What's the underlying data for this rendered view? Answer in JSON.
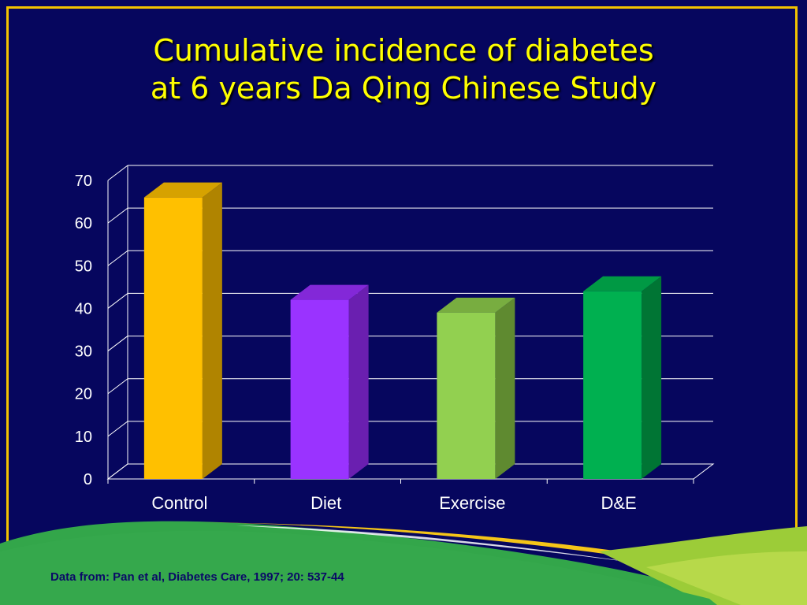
{
  "slide": {
    "title_line1": "Cumulative incidence of diabetes",
    "title_line2": "at 6 years Da Qing Chinese Study",
    "footnote": "Data from: Pan et al, Diabetes Care, 1997; 20: 537-44"
  },
  "colors": {
    "background": "#06065e",
    "frame": "#f2c200",
    "title": "#ffff00",
    "axis_text": "#ffffff",
    "grid": "#ffffff"
  },
  "chart_data": {
    "type": "bar",
    "title": "",
    "xlabel": "",
    "ylabel": "",
    "categories": [
      "Control",
      "Diet",
      "Exercise",
      "D&E"
    ],
    "values": [
      66,
      42,
      39,
      44
    ],
    "bar_colors": [
      {
        "front": "#ffc000",
        "side": "#b08400",
        "top": "#d6a200"
      },
      {
        "front": "#9a33ff",
        "side": "#6a1fb0",
        "top": "#8328d8"
      },
      {
        "front": "#92d050",
        "side": "#5f8a30",
        "top": "#78ad40"
      },
      {
        "front": "#00b050",
        "side": "#007534",
        "top": "#009944"
      }
    ],
    "ylim": [
      0,
      70
    ],
    "yticks": [
      0,
      10,
      20,
      30,
      40,
      50,
      60,
      70
    ],
    "grid": true,
    "legend": "none"
  }
}
